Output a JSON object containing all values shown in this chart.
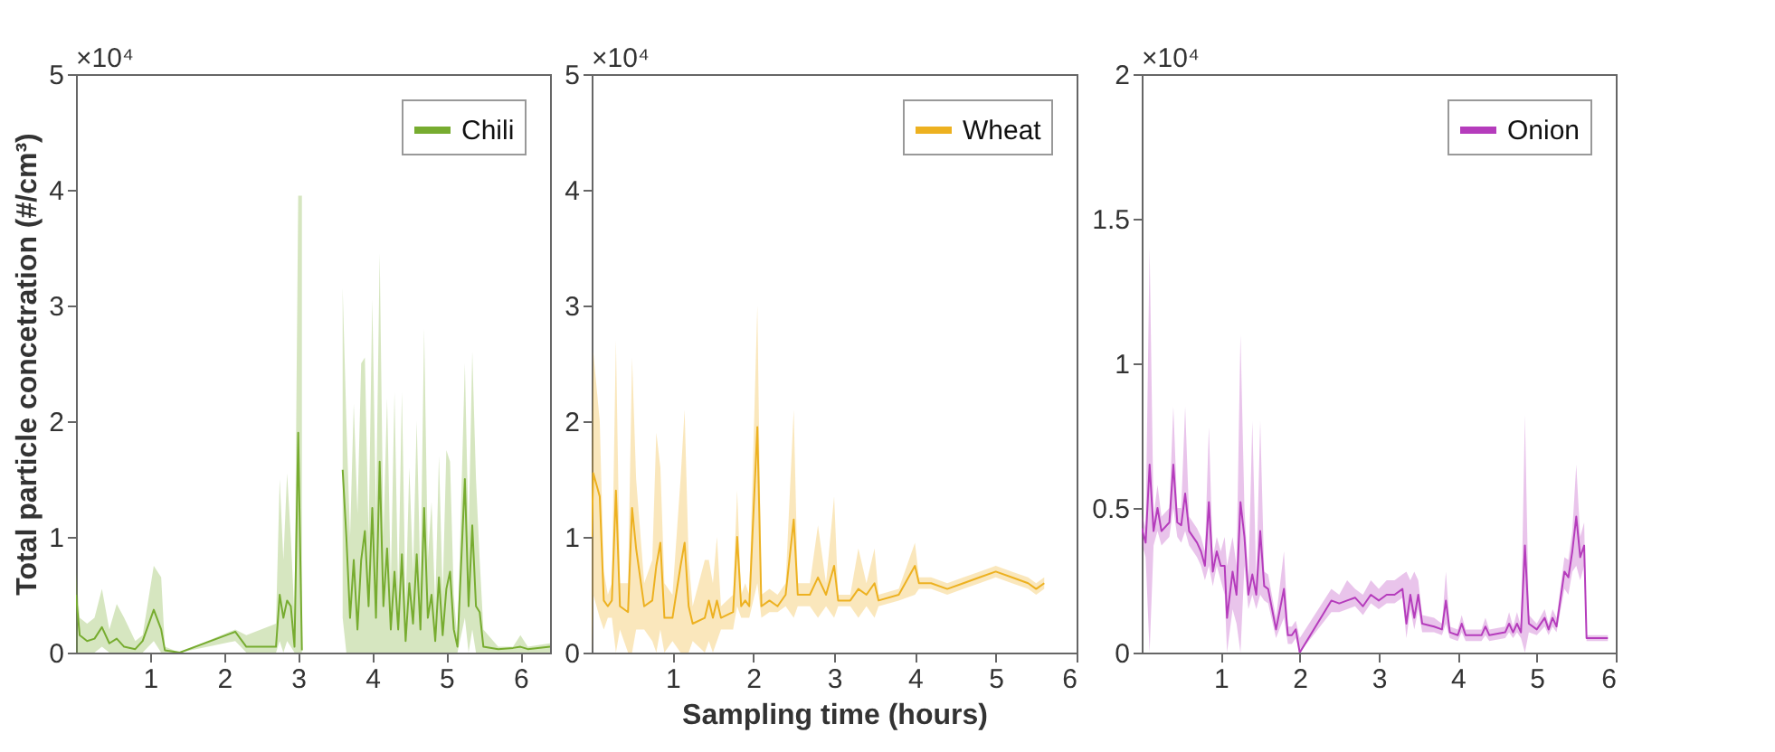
{
  "chart_data": [
    {
      "type": "line",
      "ylabel": "Total particle concetration (#/cm³)",
      "annotations": [
        "×10⁴"
      ],
      "legend": "top right",
      "xlim": [
        0,
        6.4
      ],
      "xticks": [
        1,
        2,
        3,
        4,
        5,
        6
      ],
      "ylim": [
        0,
        5
      ],
      "yticks": [
        0,
        1,
        2,
        3,
        4,
        5
      ],
      "x": [
        0,
        0.05,
        0.15,
        0.25,
        0.35,
        0.45,
        0.55,
        0.65,
        0.8,
        0.9,
        1.05,
        1.15,
        1.2,
        1.4,
        2.15,
        2.3,
        2.7,
        2.75,
        2.8,
        2.85,
        2.9,
        2.95,
        3.0,
        3.05,
        3.07,
        3.6,
        3.65,
        3.7,
        3.75,
        3.8,
        3.85,
        3.9,
        3.95,
        4.0,
        4.05,
        4.1,
        4.15,
        4.2,
        4.25,
        4.3,
        4.35,
        4.4,
        4.45,
        4.5,
        4.55,
        4.6,
        4.65,
        4.7,
        4.75,
        4.8,
        4.85,
        4.9,
        4.95,
        5.0,
        5.05,
        5.1,
        5.15,
        5.25,
        5.3,
        5.35,
        5.4,
        5.45,
        5.5,
        5.7,
        5.9,
        6.0,
        6.1,
        6.4
      ],
      "series": [
        {
          "name": "Chili",
          "color": "#77ac30",
          "values": [
            0.5,
            0.15,
            0.1,
            0.12,
            0.22,
            0.08,
            0.12,
            0.05,
            0.03,
            0.1,
            0.37,
            0.2,
            0.02,
            0,
            0.18,
            0.05,
            0.05,
            0.5,
            0.3,
            0.45,
            0.4,
            0.05,
            1.9,
            0.02,
            null,
            1.58,
            1.0,
            0.3,
            0.8,
            0.2,
            0.8,
            1.05,
            0.4,
            1.25,
            0.3,
            1.65,
            0.4,
            0.9,
            0.2,
            0.7,
            0.2,
            0.85,
            0.1,
            0.6,
            0.25,
            0.85,
            0.2,
            1.25,
            0.3,
            0.5,
            0.1,
            0.65,
            0.15,
            0.55,
            0.7,
            0.2,
            0.05,
            1.5,
            0.4,
            1.1,
            0.4,
            0.35,
            0.05,
            0.03,
            0.04,
            0.05,
            0.03,
            0.05
          ],
          "lower": [
            0,
            0,
            0,
            0,
            0.05,
            0,
            0,
            0,
            0,
            0,
            0.1,
            0,
            0,
            0,
            0.1,
            0,
            0,
            0.1,
            0,
            0.1,
            0.05,
            0,
            0,
            0,
            null,
            0.3,
            0,
            0,
            0,
            0,
            0,
            0,
            0,
            0,
            0,
            0,
            0,
            0,
            0,
            0,
            0,
            0,
            0,
            0,
            0,
            0,
            0,
            0,
            0,
            0,
            0,
            0,
            0,
            0,
            0,
            0,
            0,
            0.3,
            0,
            0.2,
            0,
            0,
            0,
            0,
            0,
            0,
            0,
            0
          ],
          "upper": [
            0.7,
            0.3,
            0.25,
            0.3,
            0.55,
            0.2,
            0.42,
            0.3,
            0.1,
            0.15,
            0.75,
            0.65,
            0.05,
            0,
            0.2,
            0.15,
            0.25,
            1.5,
            0.8,
            1.55,
            1.0,
            0.3,
            3.95,
            3.95,
            null,
            3.15,
            2.0,
            1.0,
            2.15,
            1.2,
            2.5,
            2.55,
            1.0,
            3.05,
            1.2,
            3.45,
            1.0,
            2.2,
            0.6,
            2.25,
            0.5,
            2.25,
            0.4,
            1.6,
            0.7,
            2.0,
            0.6,
            2.8,
            0.8,
            1.3,
            0.4,
            1.7,
            0.5,
            1.75,
            1.65,
            0.5,
            0.1,
            2.5,
            1.0,
            2.6,
            1.5,
            0.8,
            0.2,
            0.05,
            0.05,
            0.15,
            0.05,
            0.08
          ]
        }
      ]
    },
    {
      "type": "line",
      "xlabel": "Sampling time (hours)",
      "annotations": [
        "×10⁴"
      ],
      "legend": "top right",
      "xlim": [
        0,
        6
      ],
      "xticks": [
        1,
        2,
        3,
        4,
        5,
        6
      ],
      "ylim": [
        0,
        5
      ],
      "yticks": [
        0,
        1,
        2,
        3,
        4,
        5
      ],
      "x": [
        0,
        0.02,
        0.1,
        0.15,
        0.2,
        0.25,
        0.3,
        0.35,
        0.45,
        0.5,
        0.55,
        0.65,
        0.75,
        0.8,
        0.85,
        0.9,
        1.0,
        1.1,
        1.15,
        1.2,
        1.25,
        1.4,
        1.45,
        1.5,
        1.55,
        1.6,
        1.75,
        1.8,
        1.85,
        1.9,
        1.95,
        2.05,
        2.1,
        2.2,
        2.3,
        2.4,
        2.5,
        2.55,
        2.7,
        2.8,
        2.9,
        3.0,
        3.05,
        3.2,
        3.3,
        3.4,
        3.5,
        3.55,
        3.8,
        4.0,
        4.05,
        4.2,
        4.4,
        4.6,
        4.8,
        5.0,
        5.2,
        5.4,
        5.5,
        5.6
      ],
      "series": [
        {
          "name": "Wheat",
          "color": "#edb120",
          "values": [
            1.0,
            1.55,
            1.35,
            0.45,
            0.4,
            0.45,
            1.4,
            0.4,
            0.35,
            1.25,
            0.9,
            0.4,
            0.45,
            0.75,
            0.95,
            0.3,
            0.3,
            0.75,
            0.95,
            0.4,
            0.25,
            0.3,
            0.45,
            0.3,
            0.45,
            0.3,
            0.35,
            1.0,
            0.4,
            0.45,
            0.4,
            1.95,
            0.4,
            0.45,
            0.4,
            0.5,
            1.15,
            0.5,
            0.5,
            0.65,
            0.5,
            0.75,
            0.45,
            0.45,
            0.55,
            0.5,
            0.6,
            0.45,
            0.5,
            0.75,
            0.6,
            0.6,
            0.55,
            0.6,
            0.65,
            0.7,
            0.65,
            0.6,
            0.55,
            0.6
          ],
          "lower": [
            0,
            0.5,
            0.3,
            0.2,
            0.3,
            0.3,
            0,
            0.2,
            0,
            0,
            0.2,
            0.2,
            0.1,
            0,
            0.2,
            0,
            0.1,
            0,
            0,
            0,
            0.1,
            0,
            0.1,
            0,
            0.1,
            0.2,
            0.2,
            0.4,
            0.3,
            0.3,
            0.3,
            0.6,
            0.3,
            0.35,
            0.35,
            0.4,
            0.3,
            0.4,
            0.4,
            0.3,
            0.4,
            0.3,
            0.4,
            0.4,
            0.3,
            0.4,
            0.3,
            0.4,
            0.45,
            0.5,
            0.55,
            0.55,
            0.5,
            0.55,
            0.6,
            0.65,
            0.6,
            0.55,
            0.5,
            0.55
          ],
          "upper": [
            1.6,
            2.6,
            2.0,
            0.7,
            0.5,
            0.6,
            2.7,
            0.6,
            0.6,
            2.55,
            1.5,
            0.6,
            0.8,
            1.9,
            1.6,
            0.6,
            0.5,
            1.5,
            2.1,
            0.8,
            0.4,
            0.8,
            0.8,
            0.6,
            1.0,
            0.4,
            0.5,
            1.4,
            0.5,
            0.6,
            0.5,
            3.0,
            0.5,
            0.55,
            0.5,
            0.6,
            2.1,
            0.6,
            0.6,
            1.1,
            0.6,
            1.35,
            0.5,
            0.5,
            0.9,
            0.6,
            0.9,
            0.5,
            0.55,
            0.95,
            0.65,
            0.65,
            0.6,
            0.65,
            0.7,
            0.75,
            0.7,
            0.65,
            0.6,
            0.65
          ]
        }
      ]
    },
    {
      "type": "line",
      "annotations": [
        "×10⁴"
      ],
      "legend": "top right",
      "xlim": [
        0,
        6
      ],
      "xticks": [
        1,
        2,
        3,
        4,
        5,
        6
      ],
      "ylim": [
        0,
        2
      ],
      "yticks": [
        0,
        0.5,
        1,
        1.5,
        2
      ],
      "x": [
        0,
        0.05,
        0.1,
        0.15,
        0.2,
        0.25,
        0.35,
        0.4,
        0.45,
        0.5,
        0.55,
        0.6,
        0.7,
        0.75,
        0.8,
        0.85,
        0.9,
        0.95,
        1.0,
        1.05,
        1.08,
        1.15,
        1.2,
        1.25,
        1.3,
        1.35,
        1.4,
        1.45,
        1.5,
        1.55,
        1.6,
        1.7,
        1.8,
        1.85,
        1.9,
        1.95,
        2.0,
        2.4,
        2.5,
        2.6,
        2.7,
        2.8,
        2.9,
        3.0,
        3.1,
        3.2,
        3.3,
        3.35,
        3.4,
        3.45,
        3.5,
        3.55,
        3.7,
        3.8,
        3.85,
        3.9,
        4.0,
        4.05,
        4.1,
        4.3,
        4.35,
        4.4,
        4.6,
        4.65,
        4.7,
        4.75,
        4.8,
        4.85,
        4.9,
        5.0,
        5.1,
        5.15,
        5.2,
        5.25,
        5.35,
        5.4,
        5.45,
        5.5,
        5.55,
        5.6,
        5.63,
        5.9
      ],
      "series": [
        {
          "name": "Onion",
          "color": "#b53cbc",
          "values": [
            0.43,
            0.38,
            0.65,
            0.42,
            0.5,
            0.42,
            0.45,
            0.65,
            0.45,
            0.44,
            0.55,
            0.42,
            0.38,
            0.35,
            0.3,
            0.52,
            0.28,
            0.35,
            0.3,
            0.3,
            0.12,
            0.28,
            0.2,
            0.52,
            0.4,
            0.2,
            0.27,
            0.2,
            0.42,
            0.23,
            0.22,
            0.08,
            0.22,
            0.06,
            0.06,
            0.08,
            0,
            0.18,
            0.17,
            0.18,
            0.19,
            0.16,
            0.2,
            0.18,
            0.2,
            0.2,
            0.22,
            0.1,
            0.2,
            0.12,
            0.2,
            0.1,
            0.09,
            0.08,
            0.18,
            0.07,
            0.06,
            0.1,
            0.06,
            0.06,
            0.09,
            0.06,
            0.07,
            0.1,
            0.07,
            0.1,
            0.07,
            0.37,
            0.1,
            0.08,
            0.12,
            0.08,
            0.12,
            0.09,
            0.28,
            0.26,
            0.35,
            0.47,
            0.33,
            0.37,
            0.05,
            0.05
          ],
          "lower": [
            0.38,
            0.33,
            0,
            0.37,
            0.42,
            0.37,
            0.4,
            0.5,
            0.4,
            0.38,
            0.42,
            0.37,
            0.33,
            0.3,
            0.25,
            0.3,
            0.23,
            0.3,
            0.25,
            0.2,
            0,
            0.15,
            0.1,
            0,
            0.3,
            0.15,
            0.2,
            0.15,
            0.2,
            0.18,
            0.17,
            0.05,
            0.12,
            0.03,
            0.03,
            0.05,
            0,
            0.14,
            0.14,
            0.15,
            0.16,
            0.13,
            0.17,
            0.15,
            0.17,
            0.17,
            0.19,
            0.05,
            0.15,
            0.08,
            0.15,
            0.07,
            0.07,
            0.06,
            0.1,
            0.05,
            0.04,
            0.07,
            0.04,
            0.04,
            0.06,
            0.04,
            0.05,
            0.07,
            0.05,
            0.07,
            0.05,
            0,
            0.07,
            0.06,
            0.09,
            0.06,
            0.09,
            0.07,
            0.22,
            0.2,
            0.28,
            0.3,
            0.25,
            0.3,
            0.04,
            0.04
          ],
          "upper": [
            0.48,
            0.43,
            1.4,
            0.47,
            0.58,
            0.47,
            0.5,
            0.85,
            0.5,
            0.5,
            0.85,
            0.47,
            0.43,
            0.4,
            0.35,
            0.78,
            0.33,
            0.4,
            0.35,
            0.4,
            0.3,
            0.4,
            0.3,
            1.1,
            0.5,
            0.25,
            0.8,
            0.25,
            0.8,
            0.28,
            0.27,
            0.12,
            0.35,
            0.09,
            0.09,
            0.11,
            0.05,
            0.22,
            0.2,
            0.25,
            0.22,
            0.2,
            0.25,
            0.22,
            0.25,
            0.25,
            0.27,
            0.28,
            0.25,
            0.28,
            0.25,
            0.13,
            0.12,
            0.1,
            0.28,
            0.09,
            0.08,
            0.13,
            0.08,
            0.08,
            0.12,
            0.08,
            0.09,
            0.14,
            0.09,
            0.14,
            0.09,
            0.82,
            0.13,
            0.1,
            0.15,
            0.1,
            0.15,
            0.12,
            0.33,
            0.32,
            0.42,
            0.65,
            0.4,
            0.45,
            0.06,
            0.06
          ]
        }
      ]
    }
  ]
}
